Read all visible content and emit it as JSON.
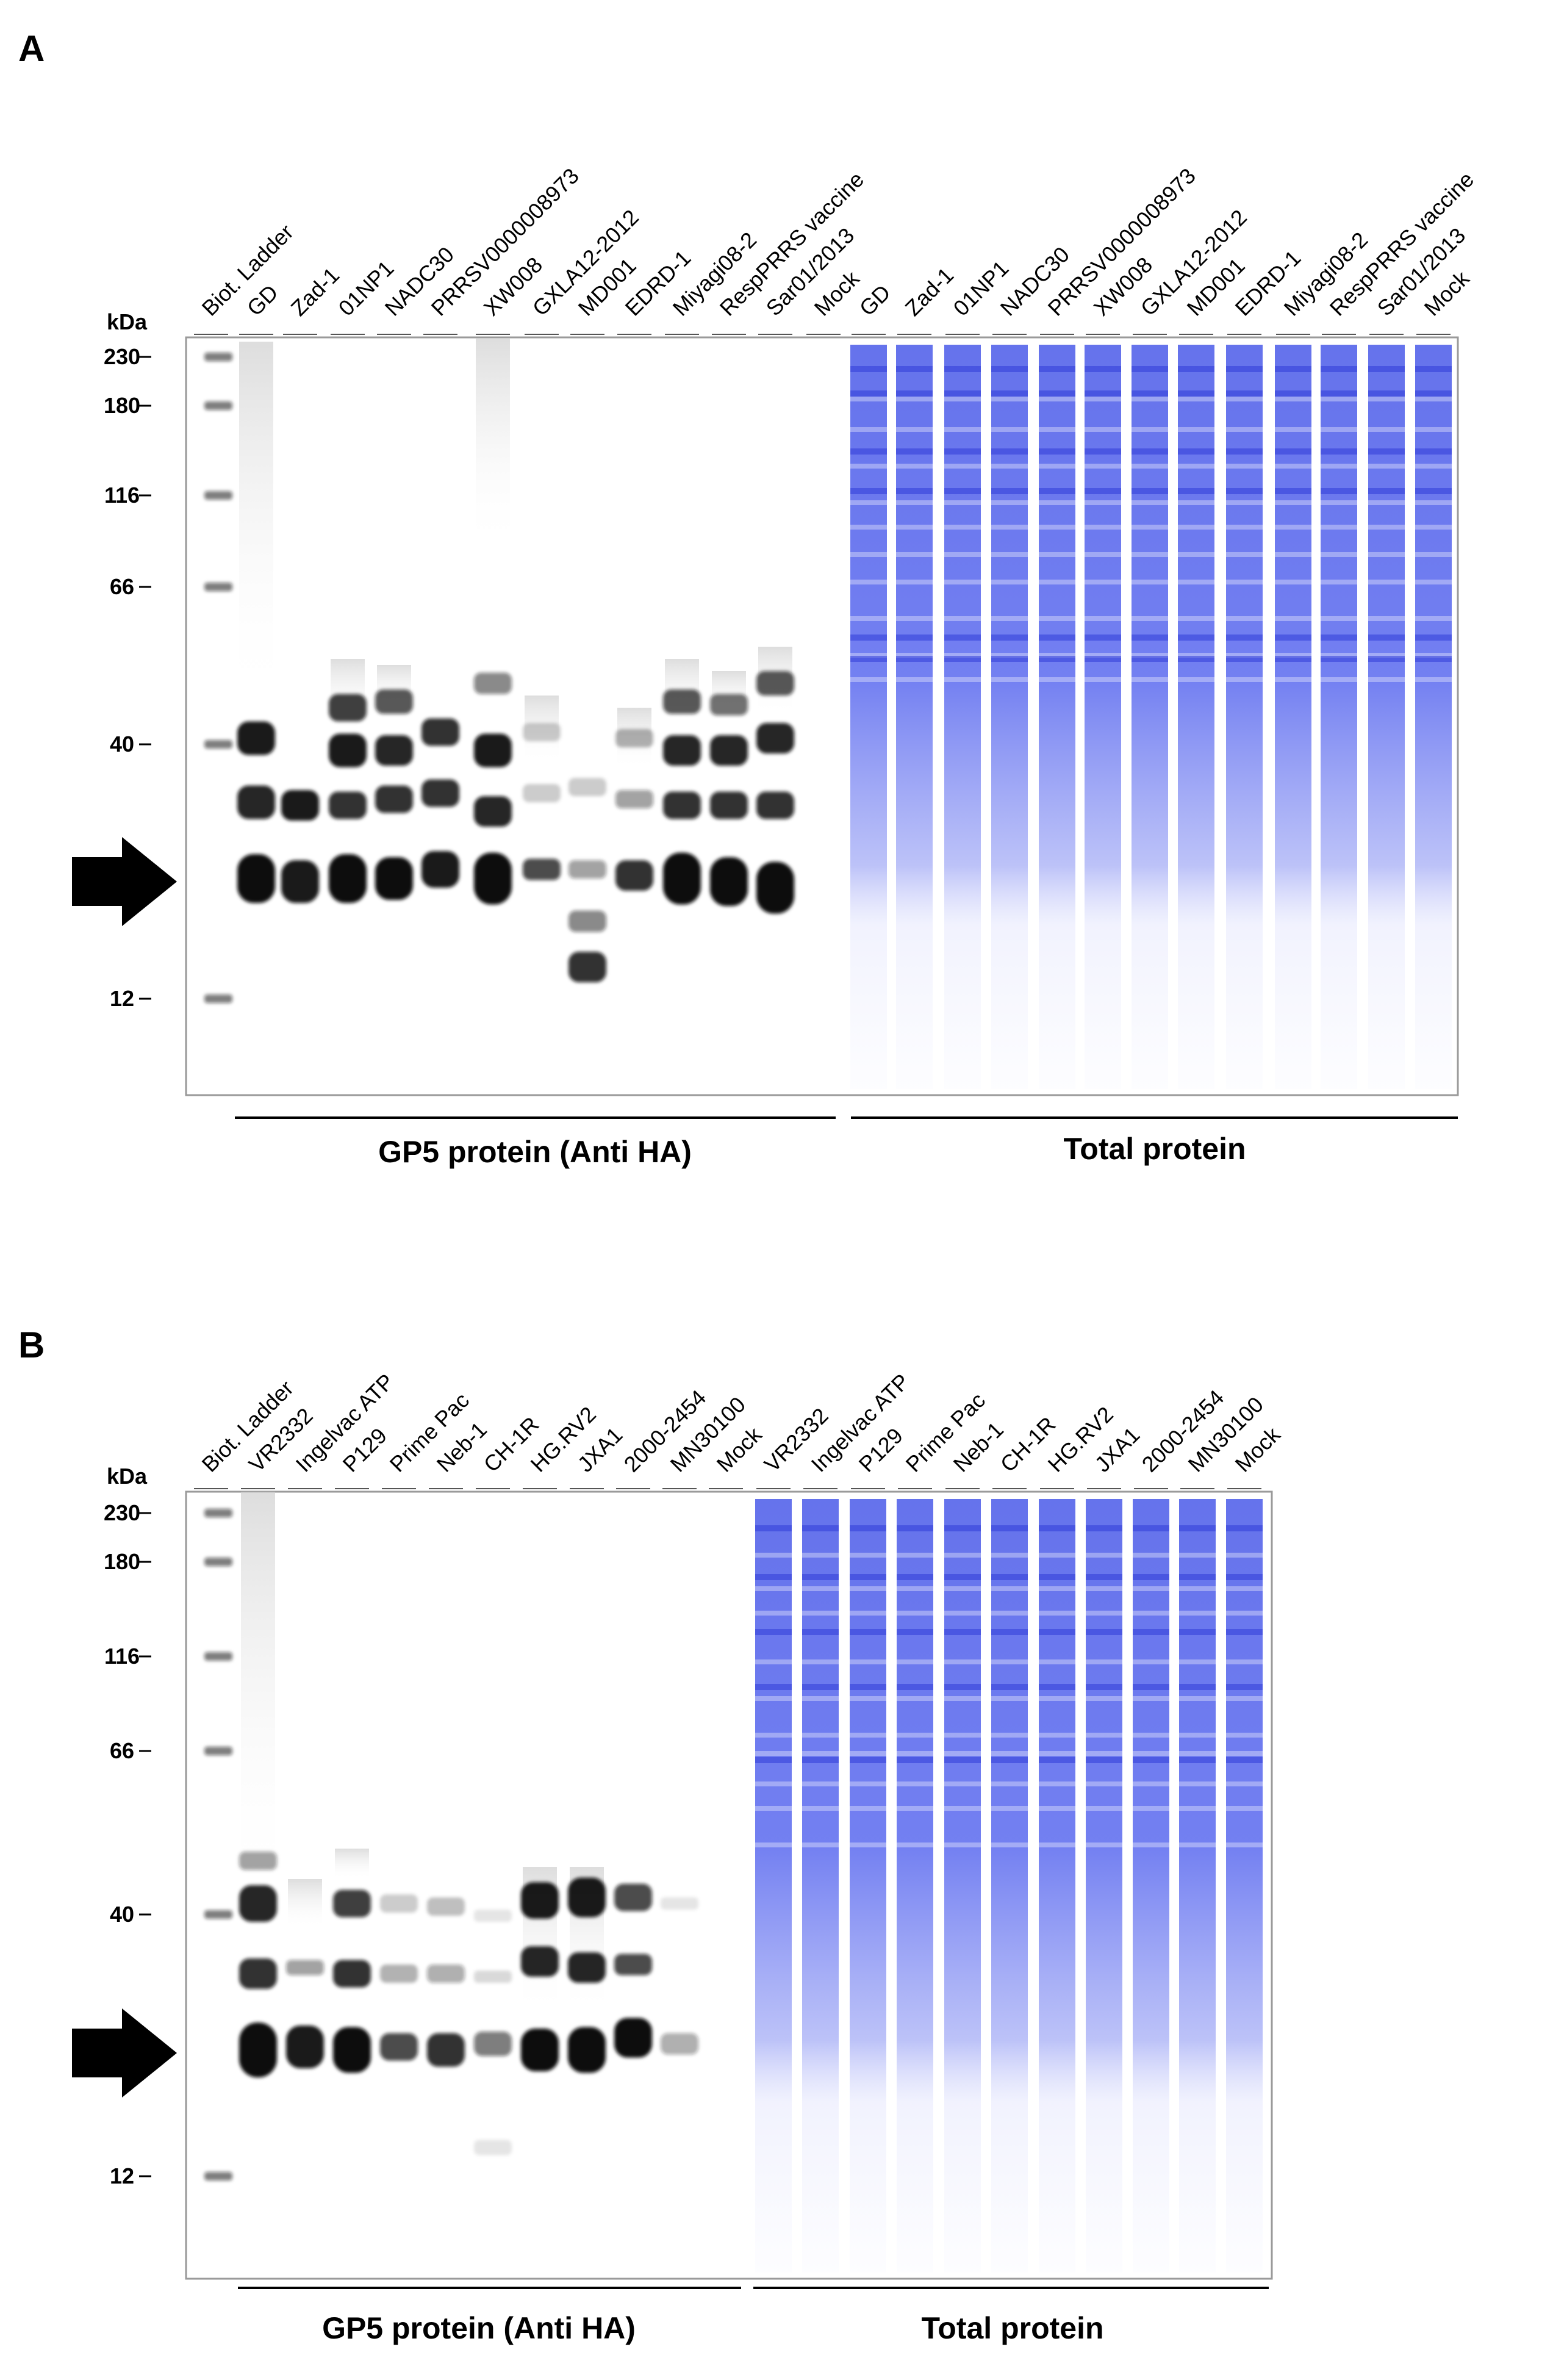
{
  "figure": {
    "panels": [
      {
        "label": "A",
        "unit_label": "kDa",
        "ladder_markers": [
          "230",
          "180",
          "116",
          "66",
          "40",
          "12"
        ],
        "lane_labels": [
          "Biot. Ladder",
          "GD",
          "Zad-1",
          "01NP1",
          "NADC30",
          "PRRSV0000008973",
          "XW008",
          "GXLA12-2012",
          "MD001",
          "EDRD-1",
          "Miyagi08-2",
          "RespPRRS vaccine",
          "Sar01/2013",
          "Mock",
          "GD",
          "Zad-1",
          "01NP1",
          "NADC30",
          "PRRSV0000008973",
          "XW008",
          "GXLA12-2012",
          "MD001",
          "EDRD-1",
          "Miyagi08-2",
          "RespPRRS vaccine",
          "Sar01/2013",
          "Mock"
        ],
        "group_labels": [
          "GP5 protein (Anti HA)",
          "Total protein"
        ]
      },
      {
        "label": "B",
        "unit_label": "kDa",
        "ladder_markers": [
          "230",
          "180",
          "116",
          "66",
          "40",
          "12"
        ],
        "lane_labels": [
          "Biot. Ladder",
          "VR2332",
          "Ingelvac ATP",
          "P129",
          "Prime Pac",
          "Neb-1",
          "CH-1R",
          "HG.RV2",
          "JXA1",
          "2000-2454",
          "MN30100",
          "Mock",
          "VR2332",
          "Ingelvac ATP",
          "P129",
          "Prime Pac",
          "Neb-1",
          "CH-1R",
          "HG.RV2",
          "JXA1",
          "2000-2454",
          "MN30100",
          "Mock"
        ],
        "group_labels": [
          "GP5 protein (Anti HA)",
          "Total protein"
        ]
      }
    ]
  }
}
